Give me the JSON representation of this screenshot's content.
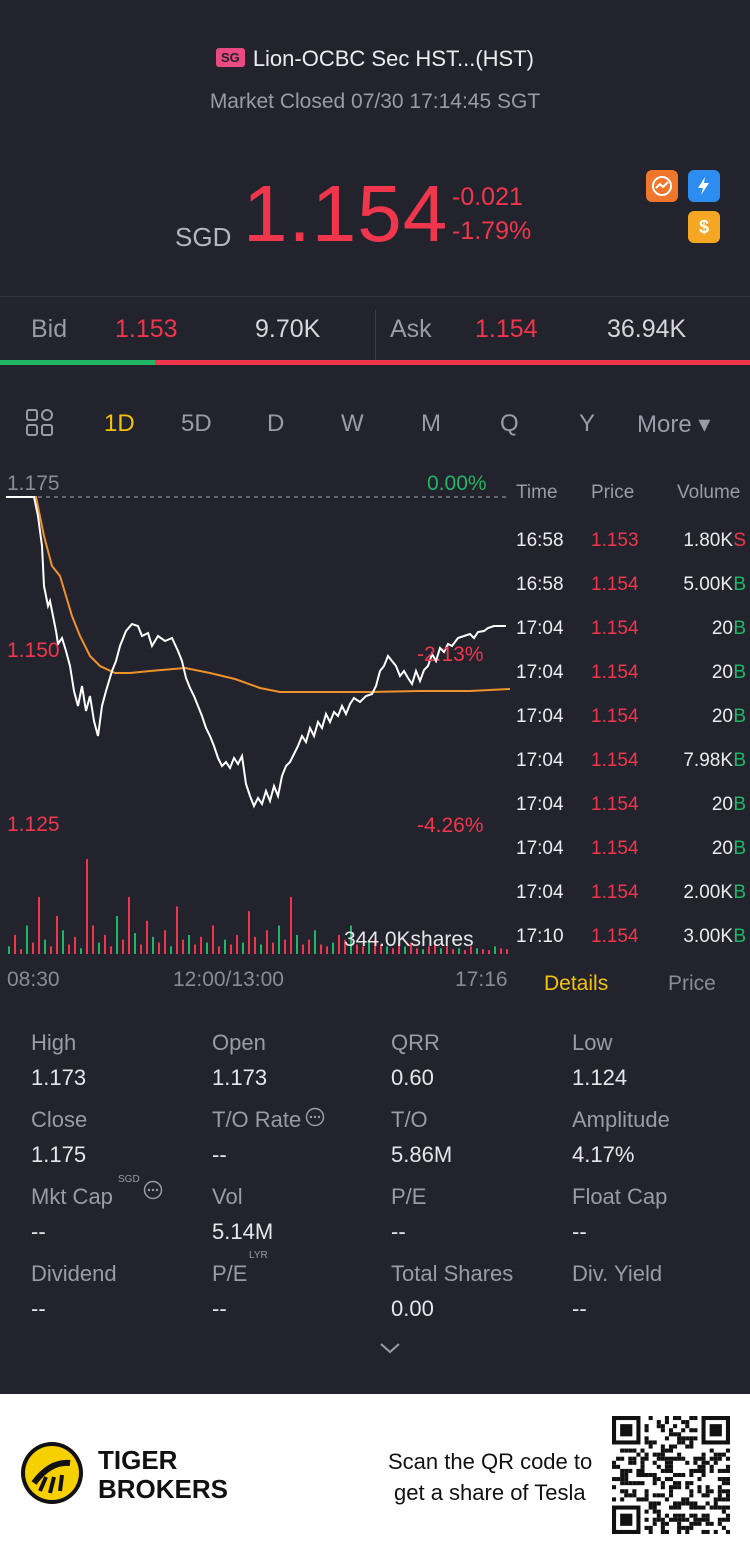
{
  "header": {
    "badge": "SG",
    "title": "Lion-OCBC Sec HST...(HST)",
    "status": "Market Closed 07/30 17:14:45 SGT",
    "currency": "SGD",
    "price": "1.154",
    "change": "-0.021",
    "change_pct": "-1.79%",
    "icons": [
      "chart-badge-icon",
      "lightning-icon",
      "dollar-icon"
    ]
  },
  "bidask": {
    "bid_label": "Bid",
    "bid_price": "1.153",
    "bid_size": "9.70K",
    "ask_label": "Ask",
    "ask_price": "1.154",
    "ask_size": "36.94K",
    "bid_ratio": 0.207
  },
  "tabs": {
    "items": [
      "1D",
      "5D",
      "D",
      "W",
      "M",
      "Q",
      "Y",
      "More ▾"
    ],
    "active": "1D"
  },
  "chart": {
    "y_top": "1.175",
    "y_mid": "1.150",
    "y_low": "1.125",
    "pct_top": "0.00%",
    "pct_mid": "-2.13%",
    "pct_low": "-4.26%",
    "volume_label": "344.0Kshares",
    "x_start": "08:30",
    "x_mid": "12:00/13:00",
    "x_end": "17:16"
  },
  "trades": {
    "headers": [
      "Time",
      "Price",
      "Volume"
    ],
    "rows": [
      {
        "time": "16:58",
        "price": "1.153",
        "vol": "1.80K",
        "side": "S"
      },
      {
        "time": "16:58",
        "price": "1.154",
        "vol": "5.00K",
        "side": "B"
      },
      {
        "time": "17:04",
        "price": "1.154",
        "vol": "20",
        "side": "B"
      },
      {
        "time": "17:04",
        "price": "1.154",
        "vol": "20",
        "side": "B"
      },
      {
        "time": "17:04",
        "price": "1.154",
        "vol": "20",
        "side": "B"
      },
      {
        "time": "17:04",
        "price": "1.154",
        "vol": "7.98K",
        "side": "B"
      },
      {
        "time": "17:04",
        "price": "1.154",
        "vol": "20",
        "side": "B"
      },
      {
        "time": "17:04",
        "price": "1.154",
        "vol": "20",
        "side": "B"
      },
      {
        "time": "17:04",
        "price": "1.154",
        "vol": "2.00K",
        "side": "B"
      },
      {
        "time": "17:10",
        "price": "1.154",
        "vol": "3.00K",
        "side": "B"
      }
    ],
    "tab_details": "Details",
    "tab_price": "Price"
  },
  "stats": {
    "items": [
      {
        "label": "High",
        "value": "1.173"
      },
      {
        "label": "Open",
        "value": "1.173"
      },
      {
        "label": "QRR",
        "value": "0.60"
      },
      {
        "label": "Low",
        "value": "1.124"
      },
      {
        "label": "Close",
        "value": "1.175"
      },
      {
        "label": "T/O Rate",
        "value": "--"
      },
      {
        "label": "T/O",
        "value": "5.86M"
      },
      {
        "label": "Amplitude",
        "value": "4.17%"
      },
      {
        "label": "Mkt Cap",
        "value": "--"
      },
      {
        "label": "Vol",
        "value": "5.14M"
      },
      {
        "label": "P/E",
        "value": "--"
      },
      {
        "label": "Float Cap",
        "value": "--"
      },
      {
        "label": "Dividend",
        "value": "--"
      },
      {
        "label": "P/E",
        "value": "--"
      },
      {
        "label": "Total Shares",
        "value": "0.00"
      },
      {
        "label": "Div. Yield",
        "value": "--"
      }
    ],
    "mktcap_sup": "SGD",
    "pe_sup": "LYR"
  },
  "footer": {
    "brand_line1": "TIGER",
    "brand_line2": "BROKERS",
    "promo_line1": "Scan the QR code to",
    "promo_line2": "get a share of Tesla"
  },
  "colors": {
    "up": "#21b566",
    "down": "#f0364d",
    "accent": "#f4c20d",
    "avg_line": "#f0922c"
  }
}
